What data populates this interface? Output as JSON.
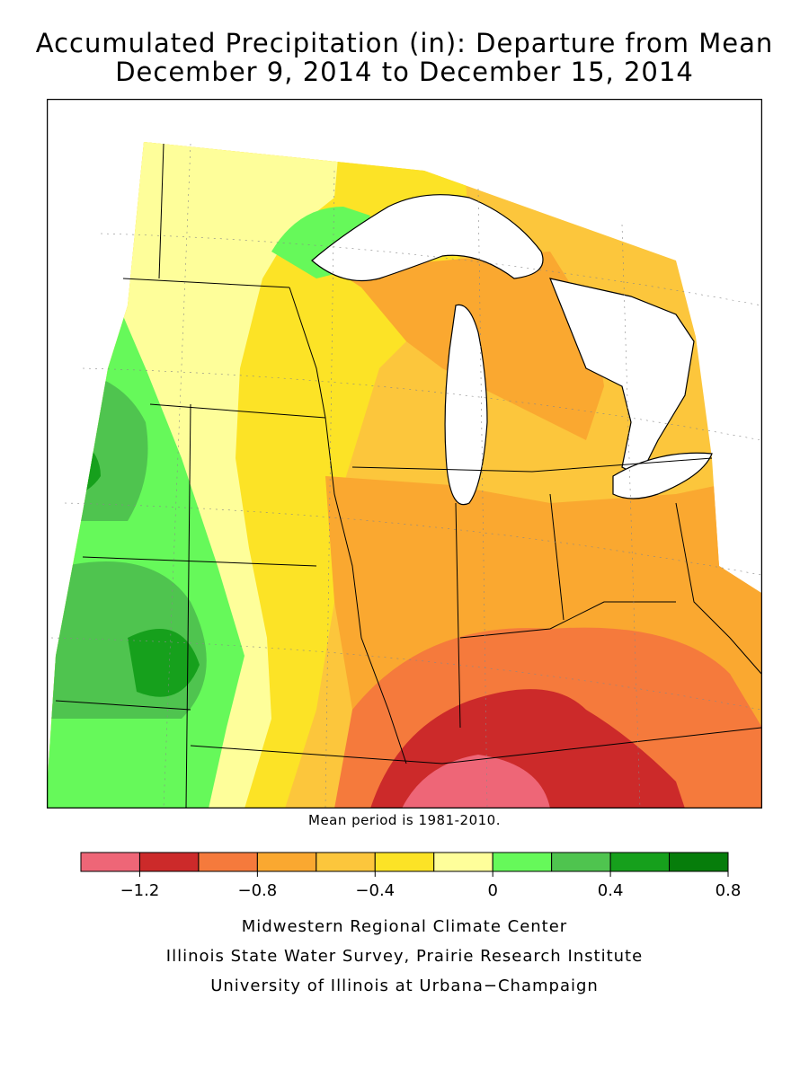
{
  "title_line1": "Accumulated Precipitation (in): Departure from Mean",
  "title_line2": "December 9, 2014 to December 15, 2014",
  "mean_note": "Mean period is 1981-2010.",
  "legend": {
    "colors": [
      "#ee6677",
      "#cc2a2a",
      "#f57a3c",
      "#faa830",
      "#fcc63c",
      "#fce326",
      "#fefe9a",
      "#66f95a",
      "#4fc44f",
      "#16a01c",
      "#067d0b"
    ],
    "ticks": [
      {
        "value": -1.2,
        "label": "−1.2"
      },
      {
        "value": -0.8,
        "label": "−0.8"
      },
      {
        "value": -0.4,
        "label": "−0.4"
      },
      {
        "value": 0,
        "label": "0"
      },
      {
        "value": 0.4,
        "label": "0.4"
      },
      {
        "value": 0.8,
        "label": "0.8"
      }
    ],
    "min": -1.4,
    "max": 0.8
  },
  "credits": {
    "line1": "Midwestern Regional Climate Center",
    "line2": "Illinois State Water Survey, Prairie Research Institute",
    "line3": "University of Illinois at Urbana−Champaign"
  }
}
